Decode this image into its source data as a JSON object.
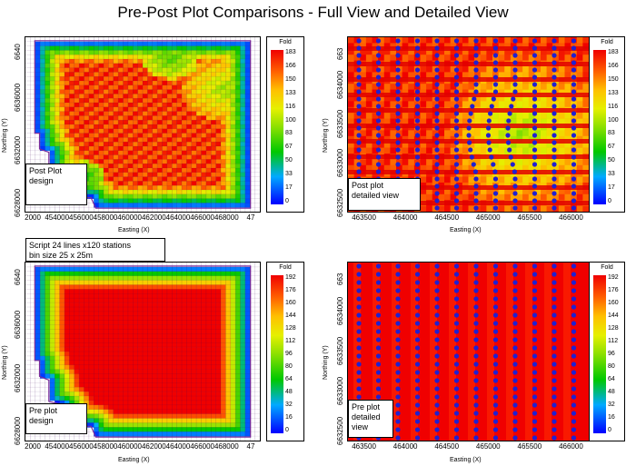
{
  "title": "Pre-Post Plot Comparisons - Full View and Detailed View",
  "script_note": [
    "Script 24 lines x120 stations",
    "bin size 25 x 25m"
  ],
  "chart_data": [
    {
      "type": "heatmap",
      "id": "post-full",
      "note": [
        "Post Plot",
        "design"
      ],
      "xlabel": "Easting (X)",
      "ylabel": "Northing (Y)",
      "xticks": [
        "2000",
        "454000",
        "456000",
        "458000",
        "460000",
        "462000",
        "464000",
        "466000",
        "468000",
        "47"
      ],
      "yticks": [
        "6640",
        "6636000",
        "6632000",
        "6628000"
      ],
      "legend_title": "Fold",
      "legend_ticks": [
        "183",
        "166",
        "150",
        "133",
        "116",
        "100",
        "83",
        "67",
        "50",
        "33",
        "17",
        "0"
      ]
    },
    {
      "type": "heatmap",
      "id": "post-detail",
      "note": [
        "Post plot",
        "detailed view"
      ],
      "xlabel": "Easting (X)",
      "ylabel": "Northing (Y)",
      "xticks": [
        "463500",
        "464000",
        "464500",
        "465000",
        "465500",
        "466000"
      ],
      "yticks": [
        "663",
        "6634000",
        "6633500",
        "6633000",
        "6632500"
      ],
      "legend_title": "Fold",
      "legend_ticks": [
        "183",
        "166",
        "150",
        "133",
        "116",
        "100",
        "83",
        "67",
        "50",
        "33",
        "17",
        "0"
      ]
    },
    {
      "type": "heatmap",
      "id": "pre-full",
      "note": [
        "Pre plot",
        "design"
      ],
      "xlabel": "Easting (X)",
      "ylabel": "Northing (Y)",
      "xticks": [
        "2000",
        "454000",
        "456000",
        "458000",
        "460000",
        "462000",
        "464000",
        "466000",
        "468000",
        "47"
      ],
      "yticks": [
        "6640",
        "6636000",
        "6632000",
        "6628000"
      ],
      "legend_title": "Fold",
      "legend_ticks": [
        "192",
        "176",
        "160",
        "144",
        "128",
        "112",
        "96",
        "80",
        "64",
        "48",
        "32",
        "16",
        "0"
      ]
    },
    {
      "type": "heatmap",
      "id": "pre-detail",
      "note": [
        "Pre plot",
        "detailed",
        "view"
      ],
      "xlabel": "Easting (X)",
      "ylabel": "Northing (Y)",
      "xticks": [
        "463500",
        "464000",
        "464500",
        "465000",
        "465500",
        "466000"
      ],
      "yticks": [
        "663",
        "6634000",
        "6633500",
        "6633000",
        "6632500"
      ],
      "legend_title": "Fold",
      "legend_ticks": [
        "192",
        "176",
        "160",
        "144",
        "128",
        "112",
        "96",
        "80",
        "64",
        "48",
        "32",
        "16",
        "0"
      ]
    }
  ]
}
